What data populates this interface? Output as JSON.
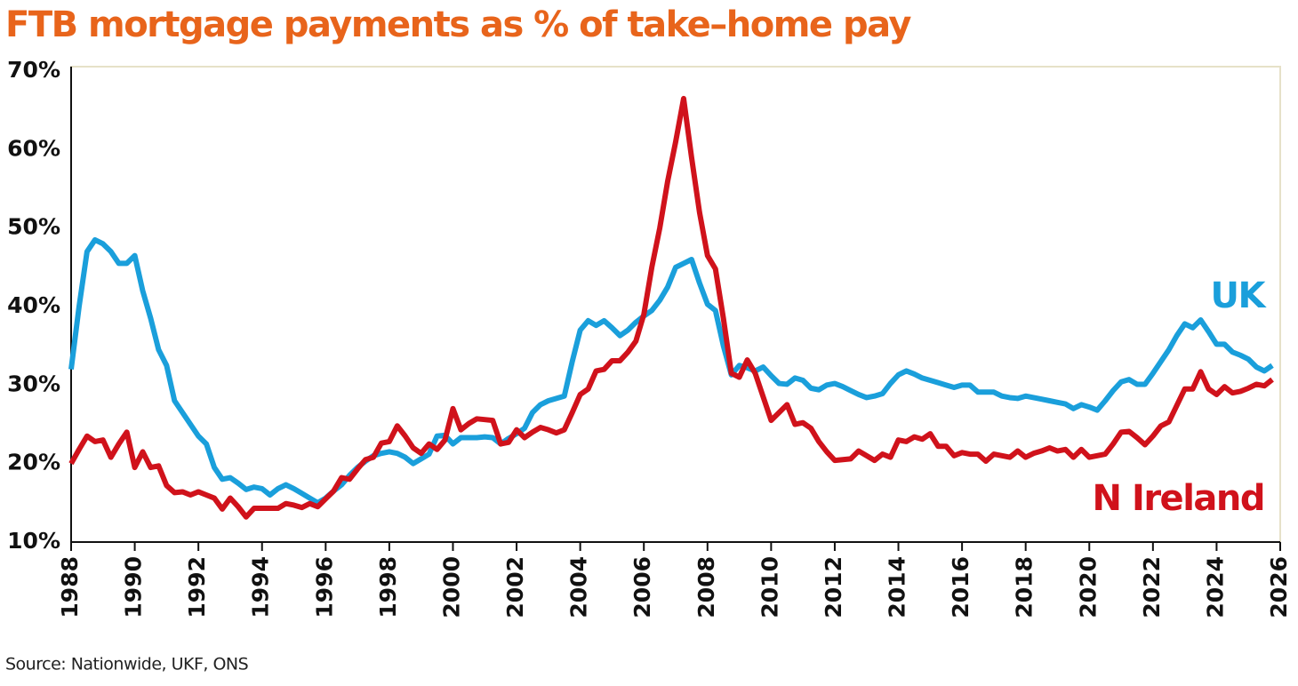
{
  "chart_data": {
    "type": "line",
    "title": "FTB mortgage payments as % of take–home pay",
    "source": "Source: Nationwide, UKF, ONS",
    "xlim": [
      1988,
      2026
    ],
    "xticks": [
      1988,
      1990,
      1992,
      1994,
      1996,
      1998,
      2000,
      2002,
      2004,
      2006,
      2008,
      2010,
      2012,
      2014,
      2016,
      2018,
      2020,
      2022,
      2024,
      2026
    ],
    "ylim": [
      10,
      70
    ],
    "yticks": [
      {
        "value": 10,
        "label": "10%"
      },
      {
        "value": 20,
        "label": "20%"
      },
      {
        "value": 30,
        "label": "30%"
      },
      {
        "value": 40,
        "label": "40%"
      },
      {
        "value": 50,
        "label": "50%"
      },
      {
        "value": 60,
        "label": "60%"
      },
      {
        "value": 70,
        "label": "70%"
      }
    ],
    "grid": false,
    "x": [
      1988,
      1988.25,
      1988.5,
      1988.75,
      1989,
      1989.25,
      1989.5,
      1989.75,
      1990,
      1990.25,
      1990.5,
      1990.75,
      1991,
      1991.25,
      1991.5,
      1991.75,
      1992,
      1992.25,
      1992.5,
      1992.75,
      1993,
      1993.25,
      1993.5,
      1993.75,
      1994,
      1994.25,
      1994.5,
      1994.75,
      1995,
      1995.25,
      1995.5,
      1995.75,
      1996,
      1996.25,
      1996.5,
      1996.75,
      1997,
      1997.25,
      1997.5,
      1997.75,
      1998,
      1998.25,
      1998.5,
      1998.75,
      1999,
      1999.25,
      1999.5,
      1999.75,
      2000,
      2000.25,
      2000.5,
      2000.75,
      2001,
      2001.25,
      2001.5,
      2001.75,
      2002,
      2002.25,
      2002.5,
      2002.75,
      2003,
      2003.25,
      2003.5,
      2003.75,
      2004,
      2004.25,
      2004.5,
      2004.75,
      2005,
      2005.25,
      2005.5,
      2005.75,
      2006,
      2006.25,
      2006.5,
      2006.75,
      2007,
      2007.25,
      2007.5,
      2007.75,
      2008,
      2008.25,
      2008.5,
      2008.75,
      2009,
      2009.25,
      2009.5,
      2009.75,
      2010,
      2010.25,
      2010.5,
      2010.75,
      2011,
      2011.25,
      2011.5,
      2011.75,
      2012,
      2012.25,
      2012.5,
      2012.75,
      2013,
      2013.25,
      2013.5,
      2013.75,
      2014,
      2014.25,
      2014.5,
      2014.75,
      2015,
      2015.25,
      2015.5,
      2015.75,
      2016,
      2016.25,
      2016.5,
      2016.75,
      2017,
      2017.25,
      2017.5,
      2017.75,
      2018,
      2018.25,
      2018.5,
      2018.75,
      2019,
      2019.25,
      2019.5,
      2019.75,
      2020,
      2020.25,
      2020.5,
      2020.75,
      2021,
      2021.25,
      2021.5,
      2021.75,
      2022,
      2022.25,
      2022.5,
      2022.75,
      2023,
      2023.25,
      2023.5,
      2023.75,
      2024,
      2024.25,
      2024.5,
      2024.75,
      2025,
      2025.25,
      2025.5,
      2025.75
    ],
    "series": [
      {
        "name": "UK",
        "color": "#1a9fdb",
        "values": [
          32,
          40,
          47,
          48.5,
          48,
          47,
          45.5,
          45.5,
          46.5,
          42,
          38.5,
          34.5,
          32.5,
          28,
          26.5,
          25,
          23.5,
          22.5,
          19.5,
          18,
          18.2,
          17.5,
          16.7,
          17,
          16.8,
          16,
          16.8,
          17.3,
          16.8,
          16.2,
          15.6,
          15,
          15.6,
          16.5,
          17.3,
          18.5,
          19.5,
          20.3,
          21,
          21.3,
          21.5,
          21.3,
          20.8,
          20,
          20.6,
          21.2,
          23.5,
          23.6,
          22.5,
          23.3,
          23.3,
          23.3,
          23.4,
          23.3,
          22.5,
          23.2,
          23.8,
          24.5,
          26.5,
          27.5,
          28,
          28.3,
          28.6,
          33,
          37,
          38.2,
          37.6,
          38.2,
          37.3,
          36.3,
          37,
          38,
          38.8,
          39.5,
          40.8,
          42.5,
          45,
          45.5,
          46,
          43,
          40.3,
          39.5,
          35,
          31.3,
          32.5,
          32.2,
          31.8,
          32.3,
          31.2,
          30.2,
          30.1,
          30.9,
          30.6,
          29.6,
          29.4,
          30,
          30.2,
          29.8,
          29.3,
          28.8,
          28.4,
          28.6,
          28.9,
          30.2,
          31.3,
          31.8,
          31.4,
          30.9,
          30.6,
          30.3,
          30,
          29.7,
          30,
          30,
          29.1,
          29.1,
          29.1,
          28.6,
          28.4,
          28.3,
          28.6,
          28.4,
          28.2,
          28,
          27.8,
          27.6,
          27,
          27.5,
          27.2,
          26.8,
          28,
          29.3,
          30.4,
          30.7,
          30.1,
          30.1,
          31.5,
          33,
          34.5,
          36.3,
          37.8,
          37.3,
          38.3,
          36.8,
          35.2,
          35.2,
          34.2,
          33.8,
          33.3,
          32.3,
          31.8,
          32.5
        ]
      },
      {
        "name": "N Ireland",
        "color": "#d0121b",
        "values": [
          20,
          21.8,
          23.5,
          22.8,
          23,
          20.8,
          22.5,
          24,
          19.5,
          21.5,
          19.5,
          19.7,
          17.2,
          16.3,
          16.4,
          16,
          16.4,
          16,
          15.6,
          14.2,
          15.6,
          14.5,
          13.2,
          14.3,
          14.3,
          14.3,
          14.3,
          14.9,
          14.7,
          14.4,
          14.9,
          14.5,
          15.5,
          16.5,
          18.2,
          18,
          19.3,
          20.5,
          20.8,
          22.6,
          22.8,
          24.8,
          23.5,
          22,
          21.3,
          22.5,
          21.8,
          23,
          27,
          24.3,
          25.1,
          25.7,
          25.6,
          25.5,
          22.5,
          22.7,
          24.3,
          23.3,
          24,
          24.6,
          24.3,
          23.9,
          24.3,
          26.5,
          28.8,
          29.5,
          31.8,
          32,
          33.1,
          33.1,
          34.2,
          35.6,
          39,
          45,
          50,
          56,
          61,
          66.5,
          59,
          52,
          46.5,
          44.8,
          38.5,
          31.5,
          31,
          33.2,
          31.5,
          28.5,
          25.5,
          26.5,
          27.5,
          25,
          25.2,
          24.5,
          22.8,
          21.5,
          20.4,
          20.5,
          20.6,
          21.6,
          21,
          20.4,
          21.2,
          20.8,
          23,
          22.8,
          23.4,
          23.1,
          23.8,
          22.2,
          22.2,
          21,
          21.4,
          21.2,
          21.2,
          20.3,
          21.2,
          21,
          20.8,
          21.6,
          20.8,
          21.3,
          21.6,
          22,
          21.6,
          21.8,
          20.8,
          21.8,
          20.8,
          21,
          21.2,
          22.5,
          24,
          24.1,
          23.3,
          22.4,
          23.5,
          24.8,
          25.3,
          27.4,
          29.5,
          29.5,
          31.7,
          29.5,
          28.8,
          29.8,
          29,
          29.2,
          29.6,
          30.1,
          29.9,
          30.7
        ]
      }
    ]
  }
}
